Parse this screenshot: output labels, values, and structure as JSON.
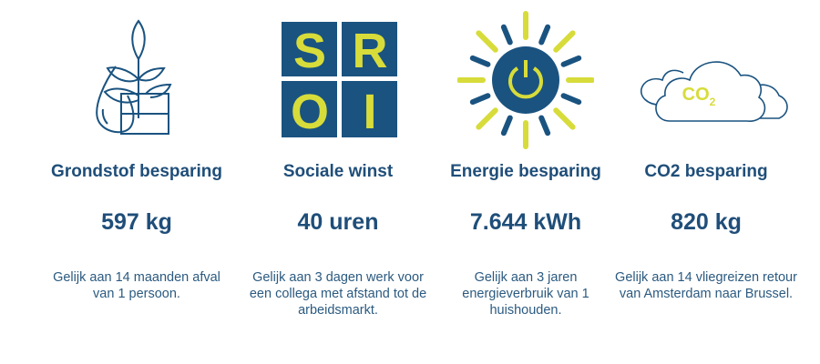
{
  "colors": {
    "navy": "#1a5380",
    "yellow": "#d7dc3a"
  },
  "items": [
    {
      "icon": "plant-water-drop-boxes-icon",
      "title": "Grondstof besparing",
      "value": "597 kg",
      "description": "Gelijk aan 14 maanden afval van 1 persoon."
    },
    {
      "icon": "sroi-logo",
      "logo_letters": "SROI",
      "title": "Sociale winst",
      "value": "40 uren",
      "description": "Gelijk aan 3 dagen werk voor een collega met afstand tot de arbeidsmarkt."
    },
    {
      "icon": "sun-power-icon",
      "title": "Energie besparing",
      "value": "7.644 kWh",
      "description": "Gelijk aan 3 jaren energieverbruik van 1 huishouden."
    },
    {
      "icon": "co2-cloud-icon",
      "icon_text": "CO2",
      "title": "CO2 besparing",
      "value": "820 kg",
      "description": "Gelijk aan 14 vliegreizen retour van Amsterdam naar Brussel."
    }
  ]
}
